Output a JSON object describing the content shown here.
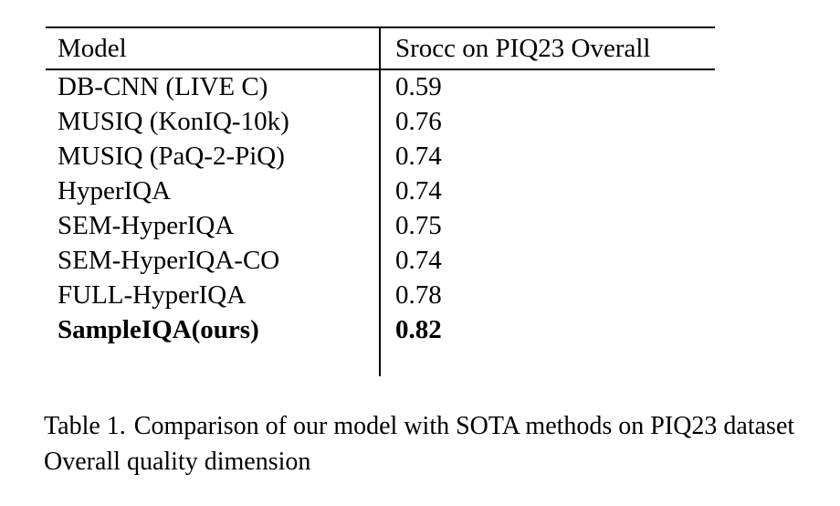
{
  "page": {
    "background": "#ffffff",
    "text_color": "#000000",
    "rule_color": "#000000"
  },
  "table": {
    "columns": [
      {
        "label": "Model"
      },
      {
        "label": "Srocc on PIQ23 Overall"
      }
    ],
    "rows": [
      {
        "model": "DB-CNN (LIVE C)",
        "srocc": "0.59",
        "bold": false
      },
      {
        "model": "MUSIQ (KonIQ-10k)",
        "srocc": "0.76",
        "bold": false
      },
      {
        "model": "MUSIQ (PaQ-2-PiQ)",
        "srocc": "0.74",
        "bold": false
      },
      {
        "model": "HyperIQA",
        "srocc": "0.74",
        "bold": false
      },
      {
        "model": "SEM-HyperIQA",
        "srocc": "0.75",
        "bold": false
      },
      {
        "model": "SEM-HyperIQA-CO",
        "srocc": "0.74",
        "bold": false
      },
      {
        "model": "FULL-HyperIQA",
        "srocc": "0.78",
        "bold": false
      },
      {
        "model": "SampleIQA(ours)",
        "srocc": "0.82",
        "bold": true
      }
    ]
  },
  "caption": {
    "label": "Table 1.",
    "body": "Comparison of our model with SOTA methods on PIQ23 dataset Overall quality dimension"
  }
}
